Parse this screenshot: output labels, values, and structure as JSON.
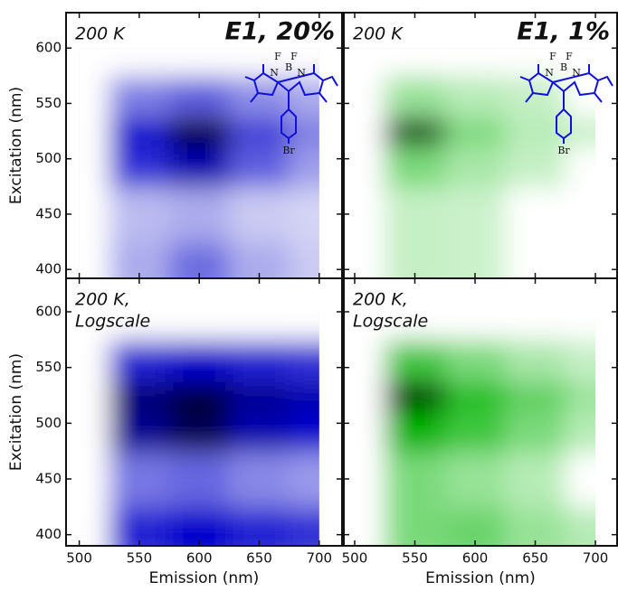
{
  "chart_data": [
    {
      "type": "contour",
      "annotation": [
        "200 K"
      ],
      "label": "E1, 20%",
      "label_color": "#1010d8",
      "color": "#0000cc",
      "background": "#dadaf6",
      "x": [
        500,
        550,
        600,
        650,
        700
      ],
      "y": [
        400,
        450,
        500,
        525,
        550,
        600
      ],
      "z": [
        [
          0,
          0.15,
          0.35,
          0.15,
          0.05
        ],
        [
          0,
          0.1,
          0.15,
          0.05,
          0.02
        ],
        [
          0,
          0.55,
          0.75,
          0.4,
          0.2
        ],
        [
          0,
          0.7,
          0.95,
          0.5,
          0.3
        ],
        [
          0,
          0.3,
          0.4,
          0.25,
          0.15
        ],
        [
          0,
          0,
          0,
          0,
          0
        ]
      ],
      "xlim": [
        489,
        719
      ],
      "ylim": [
        392,
        632
      ],
      "xticks": [
        500,
        550,
        600,
        650,
        700
      ],
      "yticks": [
        400,
        450,
        500,
        550,
        600
      ],
      "ylabel": "Excitation (nm)",
      "xtick_labels": false,
      "ytick_labels": true,
      "molecule_atoms": [
        "F",
        "F",
        "B",
        "N",
        "N",
        "Br"
      ]
    },
    {
      "type": "contour",
      "annotation": [
        "200 K"
      ],
      "label": "E1, 1%",
      "label_color": "#1010d8",
      "color": "#00b400",
      "background": "#d4f4d4",
      "x": [
        500,
        550,
        600,
        650,
        700
      ],
      "y": [
        400,
        450,
        500,
        525,
        550,
        600
      ],
      "z": [
        [
          0,
          0.05,
          0.03,
          0,
          0
        ],
        [
          0,
          0.05,
          0.03,
          0,
          0
        ],
        [
          0,
          0.3,
          0.15,
          0.05,
          0
        ],
        [
          0,
          0.9,
          0.3,
          0.1,
          0.05
        ],
        [
          0,
          0.2,
          0.1,
          0.05,
          0
        ],
        [
          0,
          0,
          0,
          0,
          0
        ]
      ],
      "xlim": [
        491,
        718
      ],
      "ylim": [
        392,
        632
      ],
      "xticks": [
        500,
        550,
        600,
        650,
        700
      ],
      "yticks": [
        400,
        450,
        500,
        550,
        600
      ],
      "xtick_labels": false,
      "ytick_labels": false,
      "molecule_atoms": [
        "F",
        "F",
        "B",
        "N",
        "N",
        "Br"
      ]
    },
    {
      "type": "contour",
      "annotation": [
        "200 K,",
        "Logscale"
      ],
      "color": "#0000cc",
      "background": "#eeeefc",
      "x": [
        500,
        550,
        600,
        650,
        700
      ],
      "y": [
        400,
        450,
        500,
        525,
        550,
        600
      ],
      "z": [
        [
          0,
          0.6,
          0.7,
          0.6,
          0.55
        ],
        [
          0,
          0.35,
          0.4,
          0.3,
          0.25
        ],
        [
          0,
          0.8,
          0.9,
          0.75,
          0.7
        ],
        [
          0,
          0.85,
          0.95,
          0.8,
          0.75
        ],
        [
          0,
          0.6,
          0.7,
          0.6,
          0.55
        ],
        [
          0,
          0,
          0,
          0,
          0
        ]
      ],
      "xlim": [
        489,
        719
      ],
      "ylim": [
        390,
        630
      ],
      "xticks": [
        500,
        550,
        600,
        650,
        700
      ],
      "yticks": [
        400,
        450,
        500,
        550,
        600
      ],
      "xlabel": "Emission (nm)",
      "ylabel": "Excitation (nm)",
      "xtick_labels": true,
      "ytick_labels": true
    },
    {
      "type": "contour",
      "annotation": [
        "200 K,",
        "Logscale"
      ],
      "color": "#00b400",
      "background": "#d4f4d4",
      "x": [
        500,
        550,
        600,
        650,
        700
      ],
      "y": [
        400,
        450,
        500,
        525,
        550,
        600
      ],
      "z": [
        [
          0,
          0.3,
          0.35,
          0.2,
          0.1
        ],
        [
          0,
          0.3,
          0.2,
          0.1,
          0
        ],
        [
          0,
          0.7,
          0.5,
          0.3,
          0.1
        ],
        [
          0,
          0.95,
          0.6,
          0.4,
          0.2
        ],
        [
          0,
          0.5,
          0.3,
          0.15,
          0.05
        ],
        [
          0,
          0,
          0,
          0,
          0
        ]
      ],
      "xlim": [
        491,
        718
      ],
      "ylim": [
        390,
        630
      ],
      "xticks": [
        500,
        550,
        600,
        650,
        700
      ],
      "yticks": [
        400,
        450,
        500,
        550,
        600
      ],
      "xlabel": "Emission (nm)",
      "xtick_labels": true,
      "ytick_labels": false
    }
  ]
}
